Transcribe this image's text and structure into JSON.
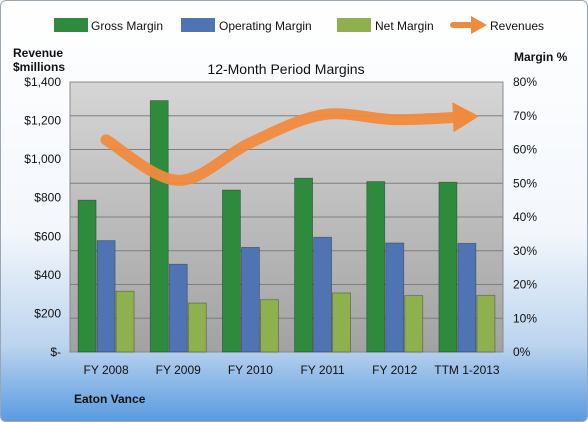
{
  "chart_data": {
    "type": "bar",
    "title": "12-Month Period Margins",
    "company": "Eaton Vance",
    "y_left_label_line1": "Revenue",
    "y_left_label_line2": "$millions",
    "y_right_label": "Margin %",
    "y_left_ticks": [
      "$-",
      "$200",
      "$400",
      "$600",
      "$800",
      "$1,000",
      "$1,200",
      "$1,400"
    ],
    "y_right_ticks": [
      "0%",
      "10%",
      "20%",
      "30%",
      "40%",
      "50%",
      "60%",
      "70%",
      "80%"
    ],
    "ylim_left": [
      0,
      1400
    ],
    "ylim_right": [
      0,
      80
    ],
    "grid": true,
    "legend_position": "top",
    "categories": [
      "FY 2008",
      "FY 2009",
      "FY 2010",
      "FY 2011",
      "FY 2012",
      "TTM 1-2013"
    ],
    "series": [
      {
        "name": "Gross Margin",
        "axis": "right",
        "kind": "bar",
        "color": "#2e8b3e",
        "values": [
          45,
          74.5,
          48,
          51.5,
          50.5,
          50.3
        ]
      },
      {
        "name": "Operating Margin",
        "axis": "right",
        "kind": "bar",
        "color": "#4f74b3",
        "values": [
          33,
          26,
          31,
          34,
          32.3,
          32.2
        ]
      },
      {
        "name": "Net Margin",
        "axis": "right",
        "kind": "bar",
        "color": "#8fb04e",
        "values": [
          18,
          14.5,
          15.5,
          17.5,
          16.7,
          16.8
        ]
      },
      {
        "name": "Revenues",
        "axis": "left",
        "kind": "line",
        "color": "#f08a3c",
        "values": [
          1100,
          890,
          1085,
          1230,
          1205,
          1220
        ]
      }
    ]
  }
}
